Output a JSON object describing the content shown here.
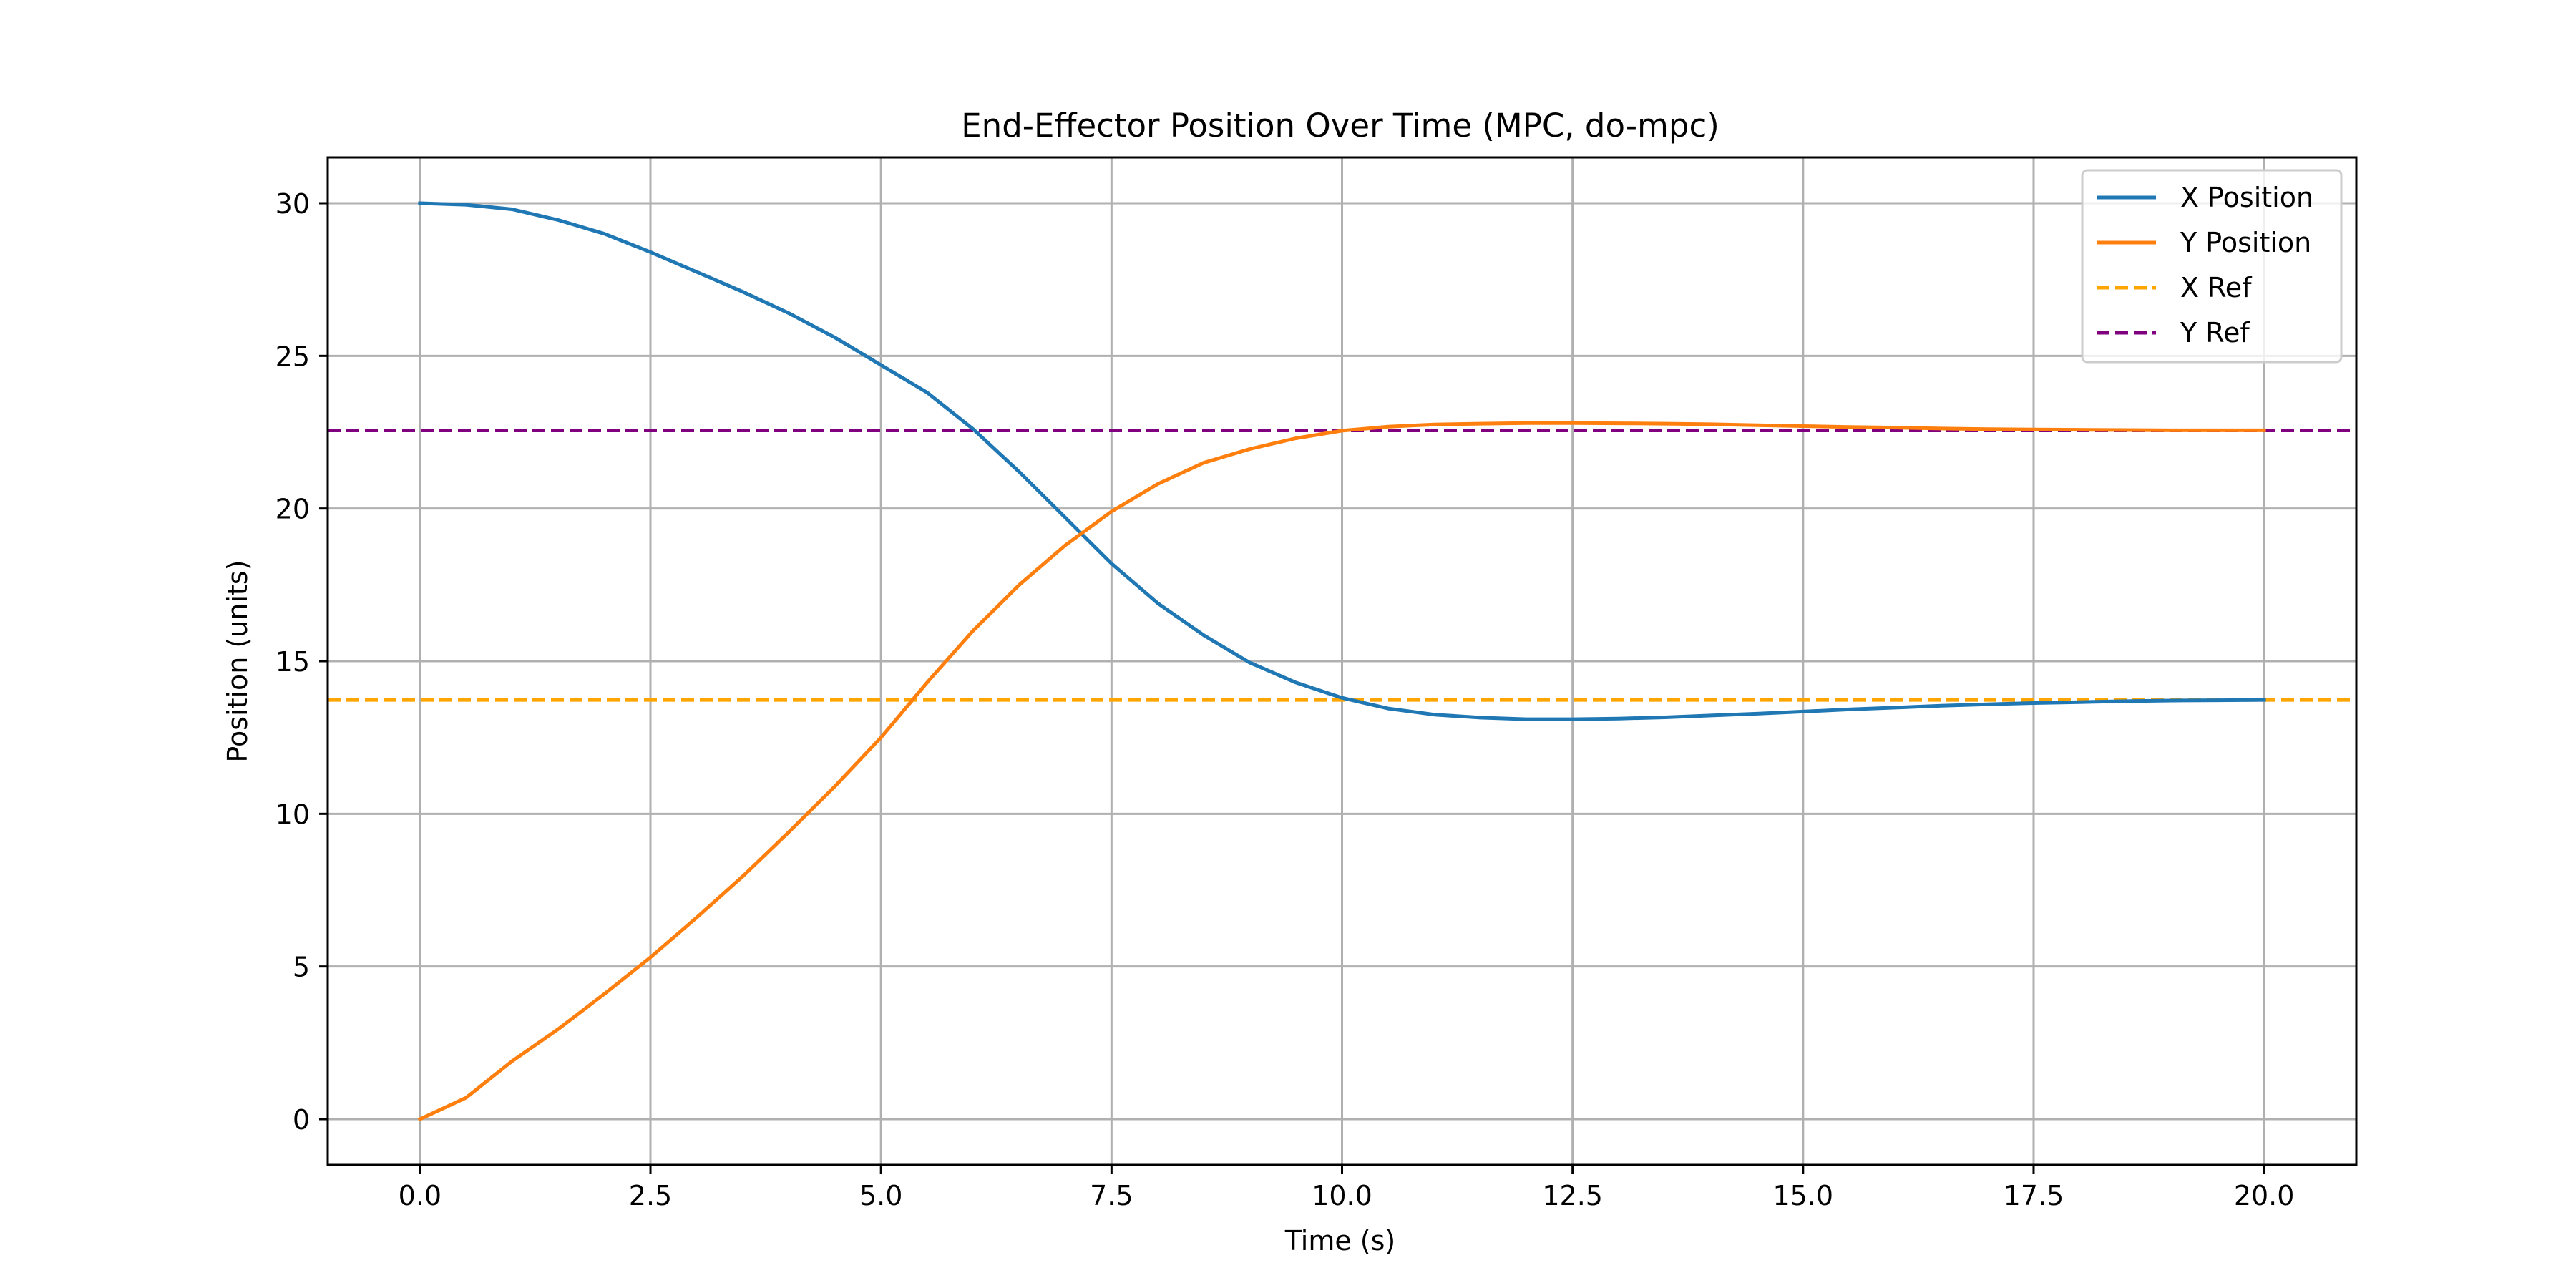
{
  "chart_data": {
    "type": "line",
    "title": "End-Effector Position Over Time (MPC, do-mpc)",
    "xlabel": "Time (s)",
    "ylabel": "Position (units)",
    "xlim": [
      -1.0,
      21.0
    ],
    "ylim": [
      -1.5,
      31.5
    ],
    "x_ticks": [
      0,
      2.5,
      5,
      7.5,
      10,
      12.5,
      15,
      17.5,
      20
    ],
    "x_tick_labels": [
      "0.0",
      "2.5",
      "5.0",
      "7.5",
      "10.0",
      "12.5",
      "15.0",
      "17.5",
      "20.0"
    ],
    "y_ticks": [
      0,
      5,
      10,
      15,
      20,
      25,
      30
    ],
    "y_tick_labels": [
      "0",
      "5",
      "10",
      "15",
      "20",
      "25",
      "30"
    ],
    "grid": true,
    "legend_position": "top-right",
    "x": [
      0.0,
      0.5,
      1.0,
      1.5,
      2.0,
      2.5,
      3.0,
      3.5,
      4.0,
      4.5,
      5.0,
      5.5,
      6.0,
      6.5,
      7.0,
      7.5,
      8.0,
      8.5,
      9.0,
      9.5,
      10.0,
      10.5,
      11.0,
      11.5,
      12.0,
      12.5,
      13.0,
      13.5,
      14.0,
      14.5,
      15.0,
      15.5,
      16.0,
      16.5,
      17.0,
      17.5,
      18.0,
      18.5,
      19.0,
      19.5,
      20.0
    ],
    "series": [
      {
        "name": "X Position",
        "style": "solid",
        "color": "#1f77b4",
        "values": [
          30.0,
          29.95,
          29.8,
          29.45,
          29.0,
          28.4,
          27.75,
          27.1,
          26.4,
          25.6,
          24.7,
          23.8,
          22.6,
          21.2,
          19.7,
          18.2,
          16.9,
          15.85,
          14.95,
          14.3,
          13.8,
          13.45,
          13.25,
          13.15,
          13.1,
          13.1,
          13.12,
          13.16,
          13.22,
          13.28,
          13.35,
          13.42,
          13.48,
          13.54,
          13.59,
          13.63,
          13.66,
          13.69,
          13.71,
          13.72,
          13.73
        ]
      },
      {
        "name": "Y Position",
        "style": "solid",
        "color": "#ff7f0e",
        "values": [
          0.0,
          0.7,
          1.9,
          2.95,
          4.1,
          5.3,
          6.6,
          7.95,
          9.4,
          10.9,
          12.5,
          14.3,
          16.0,
          17.5,
          18.8,
          19.9,
          20.8,
          21.5,
          21.95,
          22.3,
          22.55,
          22.68,
          22.75,
          22.78,
          22.8,
          22.8,
          22.79,
          22.78,
          22.76,
          22.73,
          22.7,
          22.67,
          22.65,
          22.62,
          22.6,
          22.59,
          22.58,
          22.57,
          22.56,
          22.56,
          22.56
        ]
      }
    ],
    "reference_lines": [
      {
        "name": "X Ref",
        "style": "dashed",
        "color": "#ffa500",
        "y": 13.73
      },
      {
        "name": "Y Ref",
        "style": "dashed",
        "color": "#800080",
        "y": 22.56
      }
    ]
  }
}
